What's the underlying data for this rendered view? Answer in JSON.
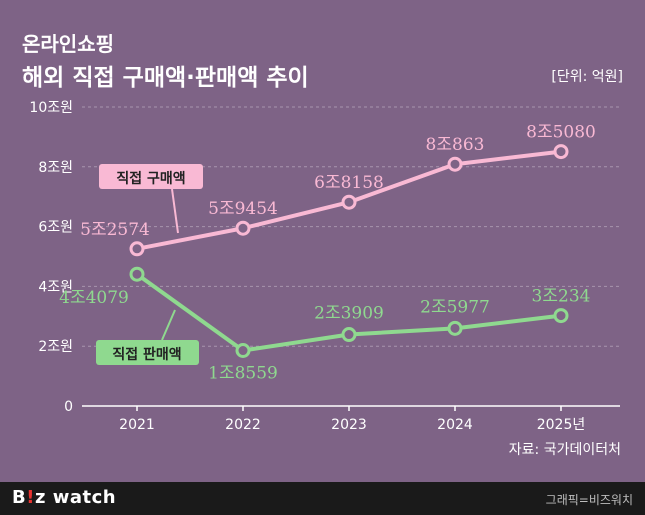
{
  "title_line1": "온라인쇼핑",
  "title_line2": "해외 직접 구매액·판매액 추이",
  "unit_label": "[단위: 억원]",
  "source_label": "자료: 국가데이터처",
  "footer": {
    "logo_prefix": "B",
    "logo_dot": "!",
    "logo_suffix": "z watch",
    "credit": "그래픽=비즈워치"
  },
  "chart_data": {
    "type": "line",
    "x": [
      "2021",
      "2022",
      "2023",
      "2024",
      "2025"
    ],
    "x_tick_labels": [
      "2021",
      "2022",
      "2023",
      "2024",
      "2025년"
    ],
    "y_ticks": [
      0,
      20000,
      40000,
      60000,
      80000,
      100000
    ],
    "y_tick_labels": [
      "0",
      "2조원",
      "4조원",
      "6조원",
      "8조원",
      "10조원"
    ],
    "ylim": [
      0,
      100000
    ],
    "series": [
      {
        "name": "직접 구매액",
        "values": [
          52574,
          59454,
          68158,
          80863,
          85080
        ],
        "value_labels": [
          "5조2574",
          "5조9454",
          "6조8158",
          "8조863",
          "8조5080"
        ],
        "color": "#f9b9d4"
      },
      {
        "name": "직접 판매액",
        "values": [
          44079,
          18559,
          23909,
          25977,
          30234
        ],
        "value_labels": [
          "4조4079",
          "1조8559",
          "2조3909",
          "2조5977",
          "3조234"
        ],
        "color": "#8fd98f"
      }
    ]
  }
}
